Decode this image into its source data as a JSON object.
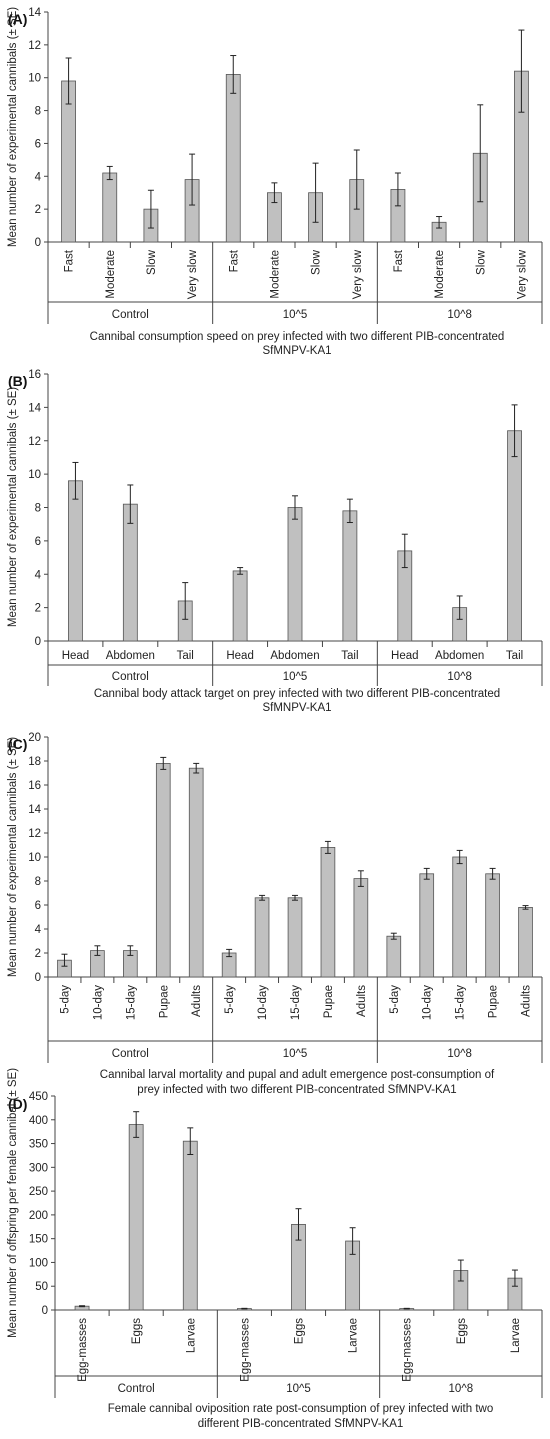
{
  "colors": {
    "bar": "#c0c0c0",
    "bar_edge": "#555555",
    "axis": "#444444",
    "error": "#222222"
  },
  "chart_data": [
    {
      "type": "bar",
      "panel_label": "(A)",
      "ylabel": "Mean number of experimental cannibals (± SE)",
      "xlabel_lines": [
        "Cannibal consumption speed on prey infected with two different PIB-concentrated",
        "SfMNPV-KA1"
      ],
      "ylim": [
        0,
        14
      ],
      "ystep": 2,
      "categories": [
        "Fast",
        "Moderate",
        "Slow",
        "Very slow"
      ],
      "cat_rotated": true,
      "groups": [
        {
          "name": "Control",
          "values": [
            9.8,
            4.2,
            2.0,
            3.8
          ],
          "errors": [
            1.4,
            0.4,
            1.15,
            1.55
          ]
        },
        {
          "name": "10^5",
          "values": [
            10.2,
            3.0,
            3.0,
            3.8
          ],
          "errors": [
            1.15,
            0.6,
            1.8,
            1.8
          ]
        },
        {
          "name": "10^8",
          "values": [
            3.2,
            1.2,
            5.4,
            10.4
          ],
          "errors": [
            1.0,
            0.35,
            2.95,
            2.5
          ]
        }
      ]
    },
    {
      "type": "bar",
      "panel_label": "(B)",
      "ylabel": "Mean number of experimental cannibals (± SE)",
      "xlabel_lines": [
        "Cannibal body attack target on prey infected with two different PIB-concentrated",
        "SfMNPV-KA1"
      ],
      "ylim": [
        0,
        16
      ],
      "ystep": 2,
      "categories": [
        "Head",
        "Abdomen",
        "Tail"
      ],
      "cat_rotated": false,
      "groups": [
        {
          "name": "Control",
          "values": [
            9.6,
            8.2,
            2.4
          ],
          "errors": [
            1.1,
            1.15,
            1.1
          ]
        },
        {
          "name": "10^5",
          "values": [
            4.2,
            8.0,
            7.8
          ],
          "errors": [
            0.2,
            0.7,
            0.7
          ]
        },
        {
          "name": "10^8",
          "values": [
            5.4,
            2.0,
            12.6
          ],
          "errors": [
            1.0,
            0.7,
            1.55
          ]
        }
      ]
    },
    {
      "type": "bar",
      "panel_label": "(C)",
      "ylabel": "Mean number of experimental cannibals (± SE)",
      "xlabel_lines": [
        "Cannibal larval mortality and pupal and adult emergence post-consumption of",
        "prey infected with two different PIB-concentrated SfMNPV-KA1"
      ],
      "ylim": [
        0,
        20
      ],
      "ystep": 2,
      "categories": [
        "5-day",
        "10-day",
        "15-day",
        "Pupae",
        "Adults"
      ],
      "cat_rotated": true,
      "groups": [
        {
          "name": "Control",
          "values": [
            1.4,
            2.2,
            2.2,
            17.8,
            17.4
          ],
          "errors": [
            0.5,
            0.4,
            0.4,
            0.5,
            0.4
          ]
        },
        {
          "name": "10^5",
          "values": [
            2.0,
            6.6,
            6.6,
            10.8,
            8.2
          ],
          "errors": [
            0.3,
            0.2,
            0.2,
            0.5,
            0.65
          ]
        },
        {
          "name": "10^8",
          "values": [
            3.4,
            8.6,
            10.0,
            8.6,
            5.8
          ],
          "errors": [
            0.25,
            0.45,
            0.55,
            0.45,
            0.15
          ]
        }
      ]
    },
    {
      "type": "bar",
      "panel_label": "(D)",
      "ylabel": "Mean number of offspring per female cannibal (± SE)",
      "xlabel_lines": [
        "Female cannibal oviposition rate post-consumption of prey infected with two",
        "different PIB-concentrated SfMNPV-KA1"
      ],
      "ylim": [
        0,
        450
      ],
      "ystep": 50,
      "categories": [
        "Egg-masses",
        "Eggs",
        "Larvae"
      ],
      "cat_rotated": true,
      "groups": [
        {
          "name": "Control",
          "values": [
            8,
            390,
            355
          ],
          "errors": [
            1,
            27,
            28
          ]
        },
        {
          "name": "10^5",
          "values": [
            3,
            180,
            145
          ],
          "errors": [
            0.5,
            33,
            28
          ]
        },
        {
          "name": "10^8",
          "values": [
            3,
            83,
            67
          ],
          "errors": [
            0.5,
            22,
            17
          ]
        }
      ]
    }
  ]
}
